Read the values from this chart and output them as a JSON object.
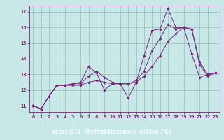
{
  "xlabel": "Windchill (Refroidissement éolien,°C)",
  "xlim": [
    -0.5,
    23.5
  ],
  "ylim": [
    10.6,
    17.4
  ],
  "yticks": [
    11,
    12,
    13,
    14,
    15,
    16,
    17
  ],
  "xticks": [
    0,
    1,
    2,
    3,
    4,
    5,
    6,
    7,
    8,
    9,
    10,
    11,
    12,
    13,
    14,
    15,
    16,
    17,
    18,
    19,
    20,
    21,
    22,
    23
  ],
  "bg_color": "#c8e8e8",
  "line_color": "#772277",
  "grid_color": "#99bbbb",
  "xlabel_bg": "#550055",
  "xlabel_fg": "#ffffff",
  "line1_x": [
    0,
    1,
    2,
    3,
    4,
    5,
    6,
    7,
    8,
    9,
    10,
    11,
    12,
    13,
    14,
    15,
    16,
    17,
    18,
    19,
    20,
    21,
    22,
    23
  ],
  "line1_y": [
    11.0,
    10.8,
    11.6,
    12.3,
    12.3,
    12.4,
    12.5,
    13.5,
    13.1,
    12.0,
    12.4,
    12.4,
    11.5,
    12.5,
    14.2,
    15.8,
    15.9,
    17.2,
    16.0,
    16.0,
    14.3,
    12.8,
    13.0,
    13.1
  ],
  "line2_x": [
    0,
    1,
    2,
    3,
    4,
    5,
    6,
    7,
    8,
    9,
    10,
    11,
    12,
    13,
    14,
    15,
    16,
    17,
    18,
    19,
    20,
    21,
    22,
    23
  ],
  "line2_y": [
    11.0,
    10.8,
    11.6,
    12.3,
    12.3,
    12.4,
    12.4,
    12.9,
    13.2,
    12.8,
    12.5,
    12.4,
    12.4,
    12.6,
    13.2,
    14.5,
    15.3,
    16.2,
    15.9,
    16.0,
    15.9,
    13.8,
    13.0,
    13.1
  ],
  "line3_x": [
    0,
    1,
    2,
    3,
    4,
    5,
    6,
    7,
    8,
    9,
    10,
    11,
    12,
    13,
    14,
    15,
    16,
    17,
    18,
    19,
    20,
    21,
    22,
    23
  ],
  "line3_y": [
    11.0,
    10.8,
    11.6,
    12.3,
    12.3,
    12.3,
    12.3,
    12.5,
    12.6,
    12.5,
    12.4,
    12.4,
    12.4,
    12.5,
    12.9,
    13.5,
    14.2,
    15.1,
    15.6,
    16.0,
    15.9,
    13.6,
    12.9,
    13.1
  ]
}
